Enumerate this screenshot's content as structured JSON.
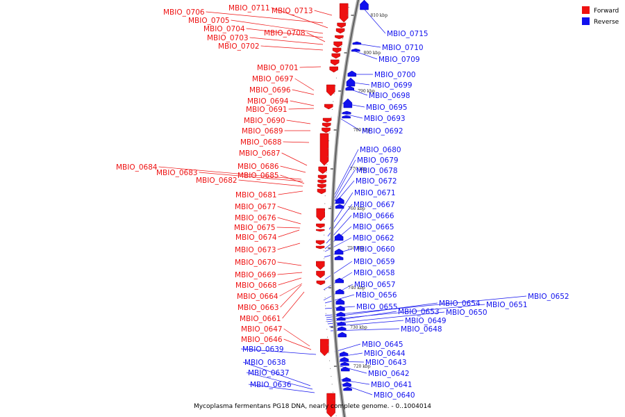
{
  "colors": {
    "forward": "#ee1111",
    "reverse": "#1111ee",
    "backbone": "#888888"
  },
  "legend": [
    {
      "label": "Forward",
      "strand": "forward"
    },
    {
      "label": "Reverse",
      "strand": "reverse"
    }
  ],
  "caption": "Mycoplasma fermentans PG18 DNA, nearly complete genome. - 0..1004014",
  "ticks": [
    "810 kbp",
    "800 kbp",
    "790 kbp",
    "780 kbp",
    "770 kbp",
    "760 kbp",
    "750 kbp",
    "740 kbp",
    "730 kbp",
    "720 kbp"
  ],
  "forward_labels": [
    "MBIO_0706",
    "MBIO_0711",
    "MBIO_0713",
    "MBIO_0705",
    "MBIO_0704",
    "MBIO_0708",
    "MBIO_0703",
    "MBIO_0702",
    "MBIO_0701",
    "MBIO_0697",
    "MBIO_0696",
    "MBIO_0694",
    "MBIO_0691",
    "MBIO_0690",
    "MBIO_0689",
    "MBIO_0688",
    "MBIO_0687",
    "MBIO_0684",
    "MBIO_0686",
    "MBIO_0683",
    "MBIO_0685",
    "MBIO_0682",
    "MBIO_0681",
    "MBIO_0677",
    "MBIO_0676",
    "MBIO_0675",
    "MBIO_0674",
    "MBIO_0673",
    "MBIO_0670",
    "MBIO_0669",
    "MBIO_0668",
    "MBIO_0664",
    "MBIO_0663",
    "MBIO_0661",
    "MBIO_0647",
    "MBIO_0646"
  ],
  "reverse_labels": [
    "MBIO_0715",
    "MBIO_0710",
    "MBIO_0709",
    "MBIO_0700",
    "MBIO_0699",
    "MBIO_0698",
    "MBIO_0695",
    "MBIO_0693",
    "MBIO_0692",
    "MBIO_0680",
    "MBIO_0679",
    "MBIO_0678",
    "MBIO_0672",
    "MBIO_0671",
    "MBIO_0667",
    "MBIO_0666",
    "MBIO_0665",
    "MBIO_0662",
    "MBIO_0660",
    "MBIO_0659",
    "MBIO_0658",
    "MBIO_0657",
    "MBIO_0656",
    "MBIO_0655",
    "MBIO_0652",
    "MBIO_0654",
    "MBIO_0651",
    "MBIO_0653",
    "MBIO_0650",
    "MBIO_0649",
    "MBIO_0648",
    "MBIO_0645",
    "MBIO_0639",
    "MBIO_0644",
    "MBIO_0643",
    "MBIO_0638",
    "MBIO_0642",
    "MBIO_0637",
    "MBIO_0641",
    "MBIO_0636",
    "MBIO_0640"
  ]
}
